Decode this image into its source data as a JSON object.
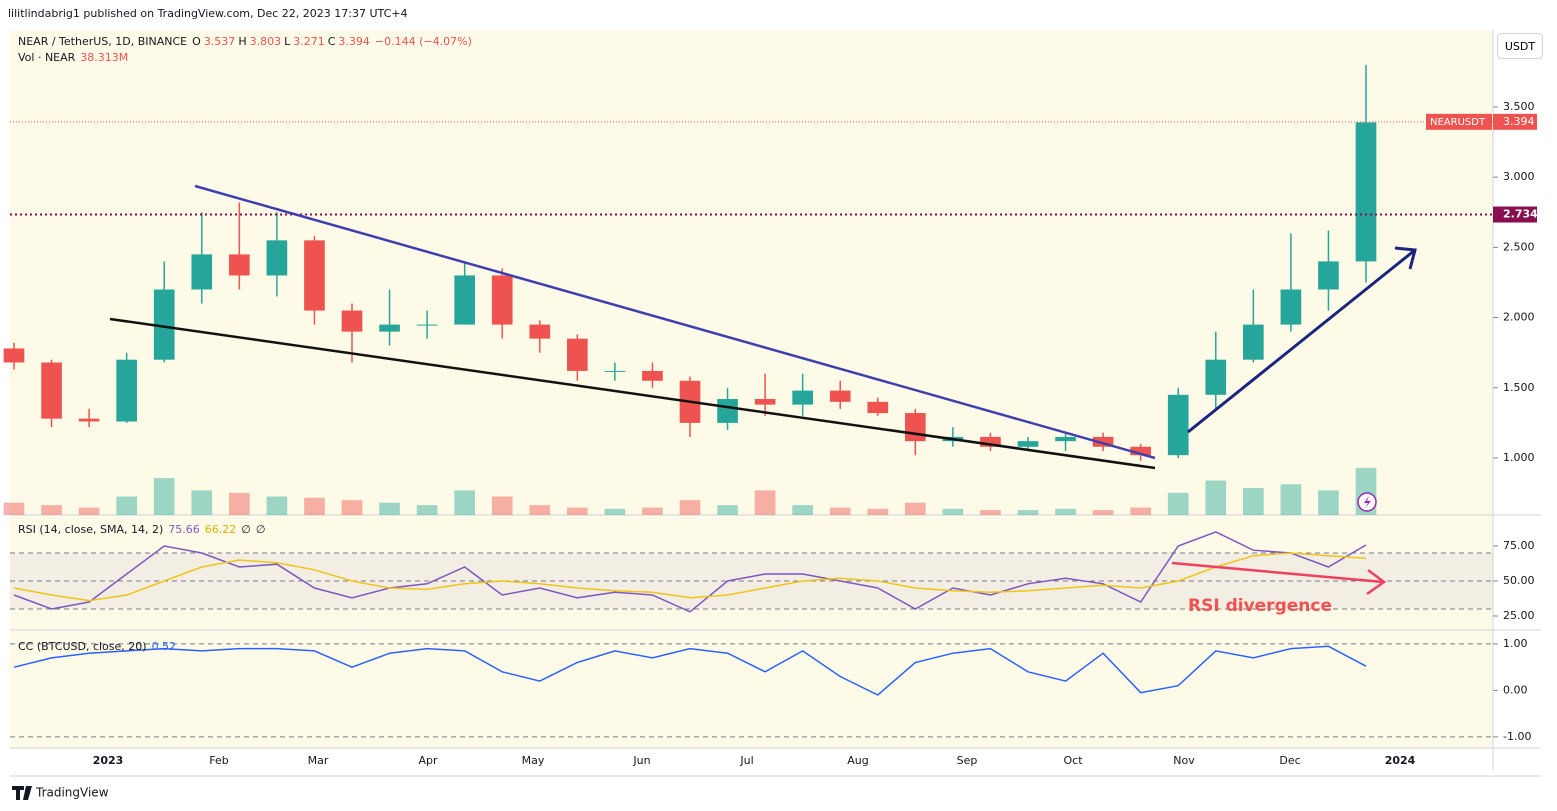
{
  "header": {
    "published": "lilitlindabrig1 published on TradingView.com, Dec 22, 2023 17:37 UTC+4"
  },
  "x_labels": [
    "2023",
    "Feb",
    "Mar",
    "Apr",
    "May",
    "Jun",
    "Jul",
    "Aug",
    "Sep",
    "Oct",
    "Nov",
    "Dec",
    "2024"
  ],
  "footer": {
    "brand": "TradingView"
  },
  "chart_data": [
    {
      "type": "candlestick",
      "title": "NEAR / TetherUS, 1D, BINANCE",
      "ohlc_legend": [
        {
          "label": "O",
          "value": 3.537
        },
        {
          "label": "H",
          "value": 3.803
        },
        {
          "label": "L",
          "value": 3.271
        },
        {
          "label": "C",
          "value": 3.394
        }
      ],
      "change": "−0.144 (−4.07%)",
      "up_color": "#26a69a",
      "down_color": "#ef5350",
      "open": [
        1.78,
        1.68,
        1.28,
        1.26,
        1.7,
        2.2,
        2.45,
        2.3,
        2.55,
        2.05,
        1.9,
        1.95,
        1.95,
        2.3,
        1.95,
        1.85,
        1.62,
        1.62,
        1.55,
        1.25,
        1.42,
        1.38,
        1.48,
        1.4,
        1.32,
        1.12,
        1.15,
        1.08,
        1.12,
        1.15,
        1.08,
        1.02,
        1.45,
        1.7,
        1.95,
        2.2,
        2.4
      ],
      "high": [
        1.82,
        1.7,
        1.35,
        1.75,
        2.4,
        2.75,
        2.82,
        2.75,
        2.58,
        2.1,
        2.2,
        2.05,
        2.4,
        2.35,
        1.98,
        1.88,
        1.68,
        1.68,
        1.58,
        1.5,
        1.6,
        1.6,
        1.55,
        1.43,
        1.35,
        1.22,
        1.18,
        1.15,
        1.18,
        1.18,
        1.1,
        1.5,
        1.9,
        2.2,
        2.6,
        2.62,
        3.8
      ],
      "low": [
        1.63,
        1.22,
        1.22,
        1.25,
        1.68,
        2.1,
        2.2,
        2.15,
        1.95,
        1.68,
        1.8,
        1.85,
        1.95,
        1.85,
        1.75,
        1.55,
        1.55,
        1.5,
        1.15,
        1.2,
        1.3,
        1.3,
        1.35,
        1.3,
        1.02,
        1.08,
        1.05,
        1.05,
        1.05,
        1.05,
        0.98,
        1.0,
        1.35,
        1.68,
        1.9,
        2.05,
        2.25
      ],
      "close": [
        1.68,
        1.28,
        1.26,
        1.7,
        2.2,
        2.45,
        2.3,
        2.55,
        2.05,
        1.9,
        1.95,
        1.95,
        2.3,
        1.95,
        1.85,
        1.62,
        1.62,
        1.55,
        1.25,
        1.42,
        1.38,
        1.48,
        1.4,
        1.32,
        1.12,
        1.15,
        1.08,
        1.12,
        1.15,
        1.08,
        1.02,
        1.45,
        1.7,
        1.95,
        2.2,
        2.4,
        3.39
      ],
      "volume_title": "Vol · NEAR",
      "volume_values": [
        10,
        8,
        6,
        15,
        30,
        20,
        18,
        15,
        14,
        12,
        10,
        8,
        20,
        15,
        8,
        6,
        5,
        6,
        12,
        8,
        20,
        8,
        6,
        5,
        10,
        5,
        4,
        4,
        5,
        4,
        6,
        18,
        28,
        22,
        25,
        20,
        38.313
      ],
      "volume_value_label": "38.313M",
      "volume_ylim": [
        0,
        130
      ],
      "ylim": [
        0.594,
        4.048
      ],
      "yticks": [
        {
          "value": 1,
          "label": "1.000"
        },
        {
          "value": 1.5,
          "label": "1.500"
        },
        {
          "value": 2,
          "label": "2.000"
        },
        {
          "value": 2.5,
          "label": "2.500"
        },
        {
          "value": 3,
          "label": "3.000"
        },
        {
          "value": 3.5,
          "label": "3.500"
        }
      ],
      "levels": [
        {
          "value": 2.734,
          "label": "2.734",
          "color": "#880e4f"
        }
      ],
      "last_price": {
        "name": "NEARUSDT",
        "value": 3.394,
        "label": "3.394",
        "color": "#ef5350"
      },
      "currency": "USDT"
    },
    {
      "type": "line",
      "title": "RSI (14, close, SMA, 14, 2)",
      "legend_values": [
        "75.66",
        "66.22",
        "∅",
        "∅"
      ],
      "series": [
        {
          "color": "#7e57c2",
          "values": [
            40,
            30,
            35,
            55,
            75,
            70,
            60,
            62,
            45,
            38,
            45,
            48,
            60,
            40,
            45,
            38,
            42,
            40,
            28,
            50,
            55,
            55,
            50,
            45,
            30,
            45,
            40,
            48,
            52,
            48,
            35,
            75,
            85,
            72,
            70,
            60,
            75.66
          ]
        },
        {
          "color": "#f0c419",
          "values": [
            45,
            40,
            36,
            40,
            50,
            60,
            65,
            63,
            58,
            50,
            45,
            44,
            48,
            50,
            48,
            45,
            43,
            42,
            38,
            40,
            45,
            50,
            52,
            50,
            45,
            43,
            42,
            43,
            45,
            47,
            45,
            50,
            60,
            68,
            70,
            68,
            66.22
          ]
        }
      ],
      "levels": [
        30,
        50,
        70
      ],
      "ylim": [
        15,
        97.1
      ],
      "yticks": [
        {
          "value": 25,
          "label": "25.00"
        },
        {
          "value": 50,
          "label": "50.00"
        },
        {
          "value": 75,
          "label": "75.00"
        }
      ],
      "annotation": "RSI divergence"
    },
    {
      "type": "line",
      "title": "CC (BTCUSD, close, 20)",
      "legend_values": [
        "0.52"
      ],
      "series": [
        {
          "color": "#2962ff",
          "values": [
            0.5,
            0.7,
            0.8,
            0.85,
            0.9,
            0.85,
            0.9,
            0.9,
            0.85,
            0.5,
            0.8,
            0.9,
            0.85,
            0.4,
            0.2,
            0.6,
            0.85,
            0.7,
            0.9,
            0.8,
            0.4,
            0.85,
            0.3,
            -0.1,
            0.6,
            0.8,
            0.9,
            0.4,
            0.2,
            0.8,
            -0.05,
            0.1,
            0.85,
            0.7,
            0.9,
            0.95,
            0.52
          ]
        }
      ],
      "levels": [
        -1,
        1
      ],
      "ylim": [
        -1.24,
        1.3
      ],
      "yticks": [
        {
          "value": -1,
          "label": "-1.00"
        },
        {
          "value": 0,
          "label": "0.00"
        },
        {
          "value": 1,
          "label": "1.00"
        }
      ]
    }
  ]
}
